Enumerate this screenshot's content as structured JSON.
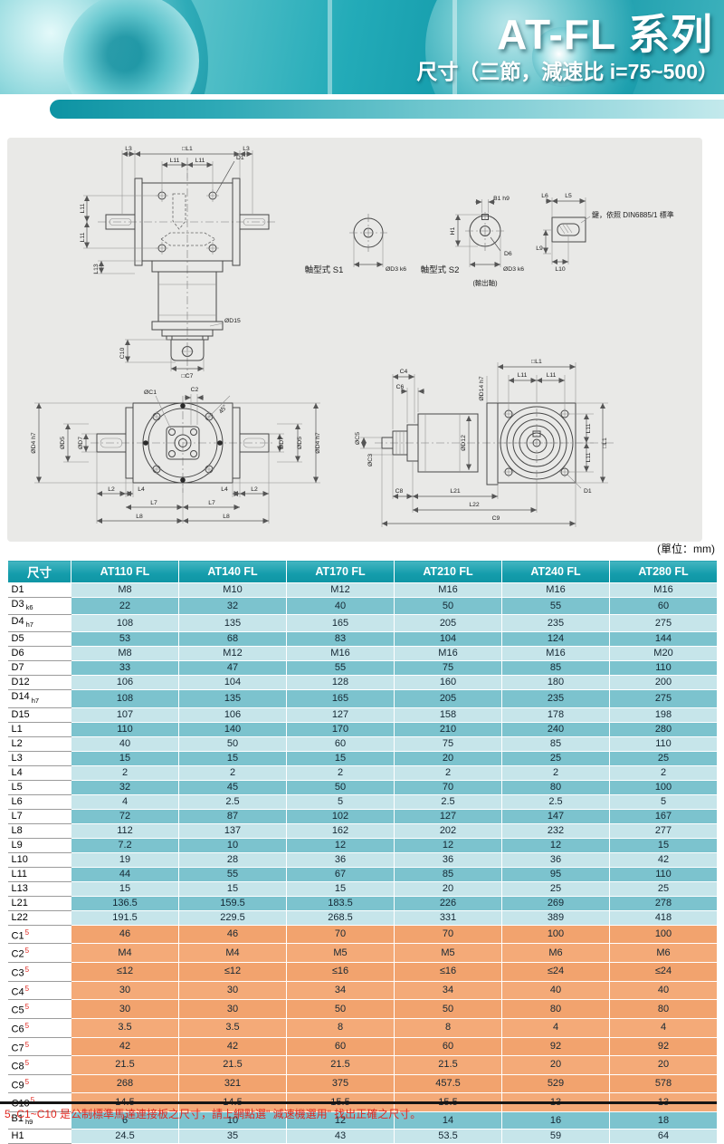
{
  "banner": {
    "title": "AT-FL 系列",
    "subtitle": "尺寸（三節，減速比 i=75~500）"
  },
  "unit_note": "(單位：mm)",
  "dw": {
    "L3": "L3",
    "L1": "□L1",
    "L11": "L11",
    "D1": "D1",
    "L13": "L13",
    "D15": "ØD15",
    "C10": "C10",
    "C7": "□C7",
    "D3": "ØD3 k6",
    "B1": "B1 h9",
    "H1": "H1",
    "D6": "D6",
    "L6": "L6",
    "L5": "L5",
    "L9": "L9",
    "L10": "L10",
    "C1": "ØC1",
    "C2": "C2",
    "A45": "45°",
    "D4": "ØD4 h7",
    "D5": "ØD5",
    "D7": "ØD7",
    "L2": "L2",
    "L4": "L4",
    "L7": "L7",
    "L8": "L8",
    "C4": "C4",
    "C6": "C6",
    "D14": "ØD14 h7",
    "D12": "ØD12",
    "C5": "ØC5",
    "C3": "ØC3",
    "C8": "C8",
    "L21": "L21",
    "L22": "L22",
    "C9": "C9",
    "S1": "軸型式 S1",
    "S2": "軸型式 S2",
    "OUT": "(輸出軸)",
    "KEY": "鍵，依照 DIN6885/1 標準"
  },
  "table": {
    "columns": [
      "尺寸",
      "AT110 FL",
      "AT140 FL",
      "AT170 FL",
      "AT210 FL",
      "AT240 FL",
      "AT280 FL"
    ],
    "rows": [
      {
        "label": "D1",
        "sub": "",
        "sup": "",
        "s": "lt",
        "values": [
          "M8",
          "M10",
          "M12",
          "M16",
          "M16",
          "M16"
        ]
      },
      {
        "label": "D3",
        "sub": "k6",
        "sup": "",
        "s": "dk",
        "values": [
          "22",
          "32",
          "40",
          "50",
          "55",
          "60"
        ]
      },
      {
        "label": "D4",
        "sub": "h7",
        "sup": "",
        "s": "lt",
        "values": [
          "108",
          "135",
          "165",
          "205",
          "235",
          "275"
        ]
      },
      {
        "label": "D5",
        "sub": "",
        "sup": "",
        "s": "dk",
        "values": [
          "53",
          "68",
          "83",
          "104",
          "124",
          "144"
        ]
      },
      {
        "label": "D6",
        "sub": "",
        "sup": "",
        "s": "lt",
        "values": [
          "M8",
          "M12",
          "M16",
          "M16",
          "M16",
          "M20"
        ]
      },
      {
        "label": "D7",
        "sub": "",
        "sup": "",
        "s": "dk",
        "values": [
          "33",
          "47",
          "55",
          "75",
          "85",
          "110"
        ]
      },
      {
        "label": "D12",
        "sub": "",
        "sup": "",
        "s": "lt",
        "values": [
          "106",
          "104",
          "128",
          "160",
          "180",
          "200"
        ]
      },
      {
        "label": "D14",
        "sub": "h7",
        "sup": "",
        "s": "dk",
        "values": [
          "108",
          "135",
          "165",
          "205",
          "235",
          "275"
        ]
      },
      {
        "label": "D15",
        "sub": "",
        "sup": "",
        "s": "lt",
        "values": [
          "107",
          "106",
          "127",
          "158",
          "178",
          "198"
        ]
      },
      {
        "label": "L1",
        "sub": "",
        "sup": "",
        "s": "dk",
        "values": [
          "110",
          "140",
          "170",
          "210",
          "240",
          "280"
        ]
      },
      {
        "label": "L2",
        "sub": "",
        "sup": "",
        "s": "lt",
        "values": [
          "40",
          "50",
          "60",
          "75",
          "85",
          "110"
        ]
      },
      {
        "label": "L3",
        "sub": "",
        "sup": "",
        "s": "dk",
        "values": [
          "15",
          "15",
          "15",
          "20",
          "25",
          "25"
        ]
      },
      {
        "label": "L4",
        "sub": "",
        "sup": "",
        "s": "lt",
        "values": [
          "2",
          "2",
          "2",
          "2",
          "2",
          "2"
        ]
      },
      {
        "label": "L5",
        "sub": "",
        "sup": "",
        "s": "dk",
        "values": [
          "32",
          "45",
          "50",
          "70",
          "80",
          "100"
        ]
      },
      {
        "label": "L6",
        "sub": "",
        "sup": "",
        "s": "lt",
        "values": [
          "4",
          "2.5",
          "5",
          "2.5",
          "2.5",
          "5"
        ]
      },
      {
        "label": "L7",
        "sub": "",
        "sup": "",
        "s": "dk",
        "values": [
          "72",
          "87",
          "102",
          "127",
          "147",
          "167"
        ]
      },
      {
        "label": "L8",
        "sub": "",
        "sup": "",
        "s": "lt",
        "values": [
          "112",
          "137",
          "162",
          "202",
          "232",
          "277"
        ]
      },
      {
        "label": "L9",
        "sub": "",
        "sup": "",
        "s": "dk",
        "values": [
          "7.2",
          "10",
          "12",
          "12",
          "12",
          "15"
        ]
      },
      {
        "label": "L10",
        "sub": "",
        "sup": "",
        "s": "lt",
        "values": [
          "19",
          "28",
          "36",
          "36",
          "36",
          "42"
        ]
      },
      {
        "label": "L11",
        "sub": "",
        "sup": "",
        "s": "dk",
        "values": [
          "44",
          "55",
          "67",
          "85",
          "95",
          "110"
        ]
      },
      {
        "label": "L13",
        "sub": "",
        "sup": "",
        "s": "lt",
        "values": [
          "15",
          "15",
          "15",
          "20",
          "25",
          "25"
        ]
      },
      {
        "label": "L21",
        "sub": "",
        "sup": "",
        "s": "dk",
        "values": [
          "136.5",
          "159.5",
          "183.5",
          "226",
          "269",
          "278"
        ]
      },
      {
        "label": "L22",
        "sub": "",
        "sup": "",
        "s": "lt",
        "values": [
          "191.5",
          "229.5",
          "268.5",
          "331",
          "389",
          "418"
        ]
      },
      {
        "label": "C1",
        "sub": "",
        "sup": "5",
        "s": "oa",
        "values": [
          "46",
          "46",
          "70",
          "70",
          "100",
          "100"
        ]
      },
      {
        "label": "C2",
        "sub": "",
        "sup": "5",
        "s": "ob",
        "values": [
          "M4",
          "M4",
          "M5",
          "M5",
          "M6",
          "M6"
        ]
      },
      {
        "label": "C3",
        "sub": "",
        "sup": "5",
        "s": "oa",
        "values": [
          "≤12",
          "≤12",
          "≤16",
          "≤16",
          "≤24",
          "≤24"
        ]
      },
      {
        "label": "C4",
        "sub": "",
        "sup": "5",
        "s": "ob",
        "values": [
          "30",
          "30",
          "34",
          "34",
          "40",
          "40"
        ]
      },
      {
        "label": "C5",
        "sub": "",
        "sup": "5",
        "s": "oa",
        "values": [
          "30",
          "30",
          "50",
          "50",
          "80",
          "80"
        ]
      },
      {
        "label": "C6",
        "sub": "",
        "sup": "5",
        "s": "ob",
        "values": [
          "3.5",
          "3.5",
          "8",
          "8",
          "4",
          "4"
        ]
      },
      {
        "label": "C7",
        "sub": "",
        "sup": "5",
        "s": "oa",
        "values": [
          "42",
          "42",
          "60",
          "60",
          "92",
          "92"
        ]
      },
      {
        "label": "C8",
        "sub": "",
        "sup": "5",
        "s": "ob",
        "values": [
          "21.5",
          "21.5",
          "21.5",
          "21.5",
          "20",
          "20"
        ]
      },
      {
        "label": "C9",
        "sub": "",
        "sup": "5",
        "s": "oa",
        "values": [
          "268",
          "321",
          "375",
          "457.5",
          "529",
          "578"
        ]
      },
      {
        "label": "C10",
        "sub": "",
        "sup": "5",
        "s": "ob",
        "values": [
          "14.5",
          "14.5",
          "15.5",
          "15.5",
          "13",
          "13"
        ]
      },
      {
        "label": "B1",
        "sub": "h9",
        "sup": "",
        "s": "dk",
        "values": [
          "6",
          "10",
          "12",
          "14",
          "16",
          "18"
        ]
      },
      {
        "label": "H1",
        "sub": "",
        "sup": "",
        "s": "lt",
        "values": [
          "24.5",
          "35",
          "43",
          "53.5",
          "59",
          "64"
        ]
      }
    ]
  },
  "footnote": "5. C1~C10 是公制標準馬達連接板之尺寸，請上網點選\" 減速機選用\" 找出正確之尺寸。",
  "colors": {
    "header_teal": "#149cab",
    "row_light": "#c6e5ea",
    "row_dark": "#7cc3ce",
    "row_orange_a": "#f2a36e",
    "row_orange_b": "#f4aa78",
    "footnote_red": "#e02820"
  }
}
